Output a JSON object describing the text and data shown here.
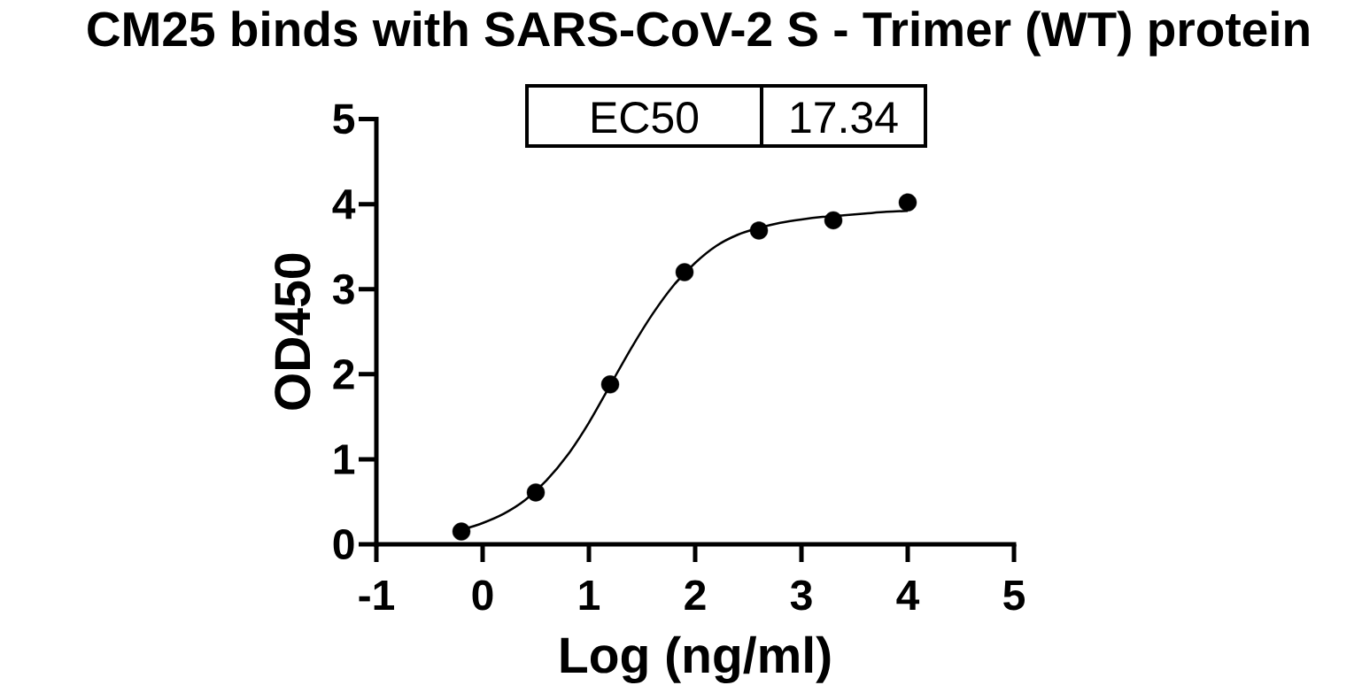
{
  "chart_data": {
    "type": "scatter",
    "title": "CM25 binds with SARS-CoV-2 S - Trimer (WT) protein",
    "xlabel": "Log (ng/ml)",
    "ylabel": "OD450",
    "annotations": [
      "EC50",
      "17.34"
    ],
    "xlim": [
      -1,
      5
    ],
    "ylim": [
      0,
      5
    ],
    "xticks": [
      -1,
      0,
      1,
      2,
      3,
      4,
      5
    ],
    "yticks": [
      0,
      1,
      2,
      3,
      4,
      5
    ],
    "series": [
      {
        "color": "#000000",
        "marker": "circle",
        "x": [
          -0.2,
          0.5,
          1.2,
          1.9,
          2.6,
          3.3,
          4.0
        ],
        "values": [
          0.15,
          0.61,
          1.88,
          3.2,
          3.69,
          3.81,
          4.02
        ]
      },
      {
        "type": "line",
        "color": "#000000",
        "marker": "none",
        "line_style": "solid",
        "x": [
          -0.2,
          0,
          0.2,
          0.4,
          0.6,
          0.8,
          1.0,
          1.2,
          1.4,
          1.6,
          1.8,
          2.0,
          2.2,
          2.4,
          2.6,
          2.8,
          3.0,
          3.2,
          3.4,
          3.6,
          3.8,
          4.0
        ],
        "values": [
          0.17,
          0.25,
          0.36,
          0.52,
          0.75,
          1.05,
          1.43,
          1.87,
          2.31,
          2.71,
          3.05,
          3.31,
          3.51,
          3.64,
          3.72,
          3.78,
          3.82,
          3.85,
          3.87,
          3.89,
          3.91,
          3.92
        ]
      }
    ]
  }
}
